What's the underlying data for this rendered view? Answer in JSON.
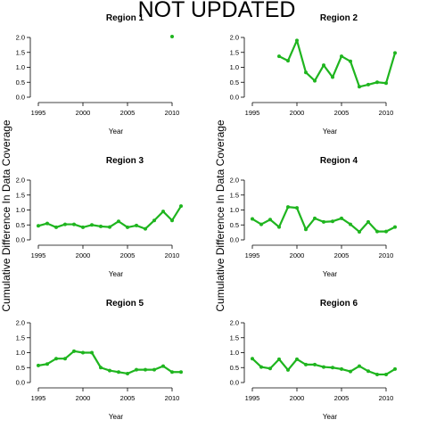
{
  "banner": "NOT UPDATED",
  "ylabel": "Cumulative Difference In Data Coverage",
  "colors": {
    "series": "#1fb51f",
    "axis": "#000000"
  },
  "chart_data": [
    {
      "type": "line",
      "title": "Region 1",
      "xlabel": "Year",
      "ylabel": "",
      "xlim": [
        1994.5,
        2014.5
      ],
      "ylim": [
        0,
        2
      ],
      "xticks": [
        "1995",
        "2000",
        "2005",
        "2010"
      ],
      "yticks": [
        "0.0",
        "0.5",
        "1.0",
        "1.5",
        "2.0"
      ],
      "x": [
        2010
      ],
      "y": [
        2.03
      ]
    },
    {
      "type": "line",
      "title": "Region 2",
      "xlabel": "Year",
      "ylabel": "",
      "xlim": [
        1994.5,
        2014.5
      ],
      "ylim": [
        0,
        2
      ],
      "xticks": [
        "1995",
        "2000",
        "2005",
        "2010"
      ],
      "yticks": [
        "0.0",
        "0.5",
        "1.0",
        "1.5",
        "2.0"
      ],
      "x": [
        1998,
        1999,
        2000,
        2001,
        2002,
        2003,
        2004,
        2005,
        2006,
        2007,
        2008,
        2009,
        2010,
        2011
      ],
      "y": [
        1.37,
        1.22,
        1.9,
        0.83,
        0.55,
        1.07,
        0.67,
        1.37,
        1.2,
        0.35,
        0.42,
        0.5,
        0.47,
        1.48
      ]
    },
    {
      "type": "line",
      "title": "Region 3",
      "xlabel": "Year",
      "ylabel": "",
      "xlim": [
        1994.5,
        2014.5
      ],
      "ylim": [
        0,
        2
      ],
      "xticks": [
        "1995",
        "2000",
        "2005",
        "2010"
      ],
      "yticks": [
        "0.0",
        "0.5",
        "1.0",
        "1.5",
        "2.0"
      ],
      "x": [
        1995,
        1996,
        1997,
        1998,
        1999,
        2000,
        2001,
        2002,
        2003,
        2004,
        2005,
        2006,
        2007,
        2008,
        2009,
        2010,
        2011
      ],
      "y": [
        0.47,
        0.55,
        0.42,
        0.52,
        0.52,
        0.42,
        0.5,
        0.45,
        0.43,
        0.62,
        0.42,
        0.48,
        0.37,
        0.65,
        0.95,
        0.65,
        1.13
      ]
    },
    {
      "type": "line",
      "title": "Region 4",
      "xlabel": "Year",
      "ylabel": "",
      "xlim": [
        1994.5,
        2014.5
      ],
      "ylim": [
        0,
        2
      ],
      "xticks": [
        "1995",
        "2000",
        "2005",
        "2010"
      ],
      "yticks": [
        "0.0",
        "0.5",
        "1.0",
        "1.5",
        "2.0"
      ],
      "x": [
        1995,
        1996,
        1997,
        1998,
        1999,
        2000,
        2001,
        2002,
        2003,
        2004,
        2005,
        2006,
        2007,
        2008,
        2009,
        2010,
        2011
      ],
      "y": [
        0.7,
        0.52,
        0.68,
        0.43,
        1.1,
        1.07,
        0.35,
        0.72,
        0.6,
        0.62,
        0.72,
        0.52,
        0.27,
        0.6,
        0.28,
        0.28,
        0.43
      ]
    },
    {
      "type": "line",
      "title": "Region 5",
      "xlabel": "Year",
      "ylabel": "",
      "xlim": [
        1994.5,
        2014.5
      ],
      "ylim": [
        0,
        2
      ],
      "xticks": [
        "1995",
        "2000",
        "2005",
        "2010"
      ],
      "yticks": [
        "0.0",
        "0.5",
        "1.0",
        "1.5",
        "2.0"
      ],
      "x": [
        1995,
        1996,
        1997,
        1998,
        1999,
        2000,
        2001,
        2002,
        2003,
        2004,
        2005,
        2006,
        2007,
        2008,
        2009,
        2010,
        2011
      ],
      "y": [
        0.57,
        0.62,
        0.8,
        0.8,
        1.05,
        1.0,
        1.0,
        0.5,
        0.4,
        0.35,
        0.3,
        0.43,
        0.43,
        0.43,
        0.55,
        0.35,
        0.35
      ]
    },
    {
      "type": "line",
      "title": "Region 6",
      "xlabel": "Year",
      "ylabel": "",
      "xlim": [
        1994.5,
        2014.5
      ],
      "ylim": [
        0,
        2
      ],
      "xticks": [
        "1995",
        "2000",
        "2005",
        "2010"
      ],
      "yticks": [
        "0.0",
        "0.5",
        "1.0",
        "1.5",
        "2.0"
      ],
      "x": [
        1995,
        1996,
        1997,
        1998,
        1999,
        2000,
        2001,
        2002,
        2003,
        2004,
        2005,
        2006,
        2007,
        2008,
        2009,
        2010,
        2011
      ],
      "y": [
        0.8,
        0.52,
        0.47,
        0.78,
        0.42,
        0.78,
        0.6,
        0.6,
        0.52,
        0.5,
        0.45,
        0.37,
        0.55,
        0.38,
        0.27,
        0.27,
        0.45
      ]
    }
  ]
}
